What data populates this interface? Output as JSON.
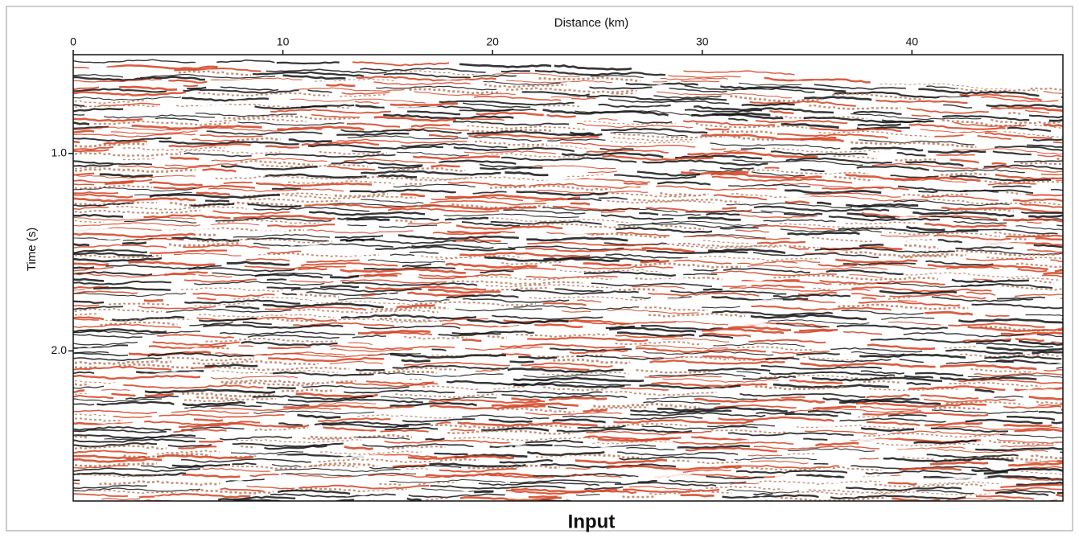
{
  "chart_data": {
    "type": "seismic",
    "title": "Input",
    "x_label": "Distance (km)",
    "y_label": "Time (s)",
    "xlim": [
      0,
      47.2
    ],
    "xticks": [
      0,
      10,
      20,
      30,
      40
    ],
    "ylim": [
      0.5,
      2.76
    ],
    "y_inverted": true,
    "yticks": [
      {
        "value": 1,
        "label": "1.0"
      },
      {
        "value": 2,
        "label": "2.0"
      }
    ],
    "x_axis_position": "top"
  }
}
